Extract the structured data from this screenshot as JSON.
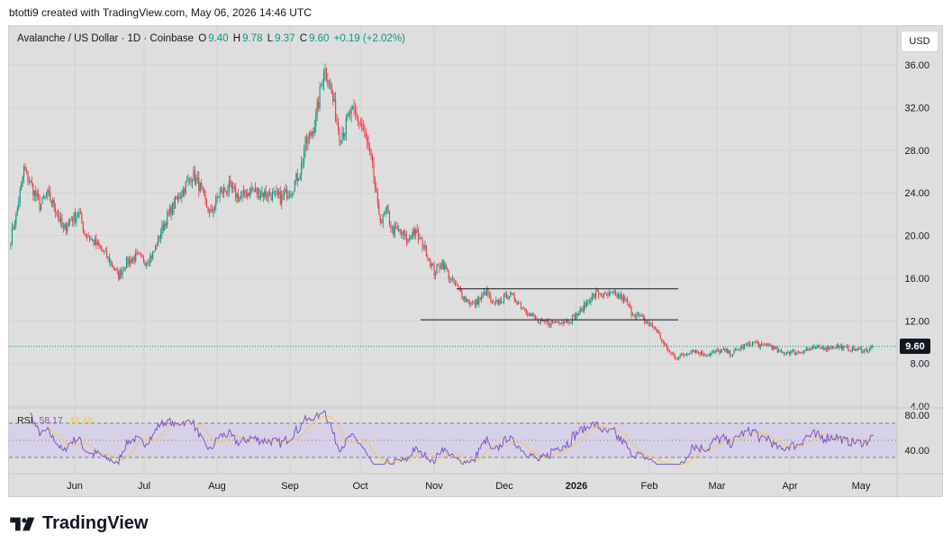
{
  "caption": "btotti9 created with TradingView.com, May 06, 2026 14:46 UTC",
  "legend": {
    "symbol": "Avalanche / US Dollar · 1D · Coinbase",
    "open_label": "O",
    "open": "9.40",
    "high_label": "H",
    "high": "9.78",
    "low_label": "L",
    "low": "9.37",
    "close_label": "C",
    "close": "9.60",
    "change": "+0.19 (+2.02%)"
  },
  "currency_button": "USD",
  "last_price": "9.60",
  "rsi_legend": {
    "label": "RSI",
    "value": "58.17",
    "ma": "49.48"
  },
  "footer_brand": "TradingView",
  "colors": {
    "up": "#089981",
    "down": "#f23645",
    "rsi": "#7e57c2",
    "rsi_ma": "#f7c948",
    "band": "#d7d1e8"
  },
  "chart_data": {
    "type": "candlestick",
    "price_axis": {
      "ticks": [
        "36.00",
        "32.00",
        "28.00",
        "24.00",
        "20.00",
        "16.00",
        "12.00",
        "8.00",
        "4.00"
      ],
      "range": [
        4,
        36
      ]
    },
    "rsi_axis": {
      "ticks": [
        "80.00",
        "40.00"
      ],
      "band": [
        30,
        70
      ]
    },
    "time_ticks": [
      "Jun",
      "Jul",
      "Aug",
      "Sep",
      "Oct",
      "Nov",
      "Dec",
      "2026",
      "Feb",
      "Mar",
      "Apr",
      "May"
    ],
    "anchors": [
      [
        0,
        19.8
      ],
      [
        4,
        21.8
      ],
      [
        10,
        26.2
      ],
      [
        16,
        24.6
      ],
      [
        22,
        22.8
      ],
      [
        28,
        23.8
      ],
      [
        34,
        22.5
      ],
      [
        40,
        20.5
      ],
      [
        46,
        21.6
      ],
      [
        52,
        22.0
      ],
      [
        56,
        20.3
      ],
      [
        62,
        19.5
      ],
      [
        68,
        18.8
      ],
      [
        76,
        17.5
      ],
      [
        82,
        16.2
      ],
      [
        88,
        17.5
      ],
      [
        95,
        18.0
      ],
      [
        102,
        17.6
      ],
      [
        108,
        18.2
      ],
      [
        114,
        20.3
      ],
      [
        120,
        22.0
      ],
      [
        126,
        23.3
      ],
      [
        132,
        24.5
      ],
      [
        138,
        25.8
      ],
      [
        144,
        24.5
      ],
      [
        148,
        23.0
      ],
      [
        152,
        22.0
      ],
      [
        158,
        23.8
      ],
      [
        166,
        24.5
      ],
      [
        174,
        23.5
      ],
      [
        182,
        24.2
      ],
      [
        190,
        24.0
      ],
      [
        198,
        23.8
      ],
      [
        206,
        23.5
      ],
      [
        214,
        24.5
      ],
      [
        220,
        26.0
      ],
      [
        224,
        28.5
      ],
      [
        228,
        29.5
      ],
      [
        232,
        31.0
      ],
      [
        236,
        34.0
      ],
      [
        238,
        35.8
      ],
      [
        242,
        34.5
      ],
      [
        246,
        32.0
      ],
      [
        250,
        29.5
      ],
      [
        254,
        30.0
      ],
      [
        258,
        31.5
      ],
      [
        262,
        31.2
      ],
      [
        266,
        30.5
      ],
      [
        270,
        29.0
      ],
      [
        274,
        27.0
      ],
      [
        276,
        25.5
      ],
      [
        279,
        22.5
      ],
      [
        282,
        21.3
      ],
      [
        286,
        22.3
      ],
      [
        290,
        20.5
      ],
      [
        296,
        20.3
      ],
      [
        302,
        19.5
      ],
      [
        306,
        20.5
      ],
      [
        310,
        19.8
      ],
      [
        316,
        18.5
      ],
      [
        322,
        16.5
      ],
      [
        328,
        17.5
      ],
      [
        334,
        16.0
      ],
      [
        340,
        15.0
      ],
      [
        346,
        14.0
      ],
      [
        352,
        13.5
      ],
      [
        358,
        14.2
      ],
      [
        362,
        14.8
      ],
      [
        366,
        13.5
      ],
      [
        372,
        13.8
      ],
      [
        378,
        14.5
      ],
      [
        384,
        14.0
      ],
      [
        390,
        13.2
      ],
      [
        396,
        12.5
      ],
      [
        402,
        11.8
      ],
      [
        410,
        11.8
      ],
      [
        418,
        12.0
      ],
      [
        424,
        12.0
      ],
      [
        428,
        12.3
      ],
      [
        434,
        13.0
      ],
      [
        440,
        14.0
      ],
      [
        446,
        14.6
      ],
      [
        452,
        14.3
      ],
      [
        458,
        14.5
      ],
      [
        464,
        14.2
      ],
      [
        468,
        13.8
      ],
      [
        472,
        12.8
      ],
      [
        478,
        12.4
      ],
      [
        484,
        11.8
      ],
      [
        490,
        11.3
      ],
      [
        494,
        10.4
      ],
      [
        498,
        9.5
      ],
      [
        502,
        8.9
      ],
      [
        506,
        8.6
      ],
      [
        512,
        8.8
      ],
      [
        518,
        9.3
      ],
      [
        524,
        9.0
      ],
      [
        530,
        8.8
      ],
      [
        536,
        9.1
      ],
      [
        542,
        9.2
      ],
      [
        548,
        8.9
      ],
      [
        554,
        9.4
      ],
      [
        560,
        9.7
      ],
      [
        566,
        10.0
      ],
      [
        570,
        9.6
      ],
      [
        576,
        9.8
      ],
      [
        580,
        9.4
      ],
      [
        586,
        9.0
      ],
      [
        592,
        9.1
      ],
      [
        598,
        9.0
      ],
      [
        604,
        9.3
      ],
      [
        612,
        9.4
      ],
      [
        620,
        9.5
      ],
      [
        628,
        9.6
      ],
      [
        636,
        9.4
      ],
      [
        644,
        9.3
      ],
      [
        650,
        9.25
      ],
      [
        654,
        9.45
      ],
      [
        656,
        9.6
      ]
    ],
    "annotations": [
      {
        "type": "horizontal-line",
        "price": 15.0,
        "from": "Nov",
        "to": "Feb"
      },
      {
        "type": "horizontal-line",
        "price": 12.1,
        "from": "Nov",
        "to": "Feb"
      }
    ]
  }
}
